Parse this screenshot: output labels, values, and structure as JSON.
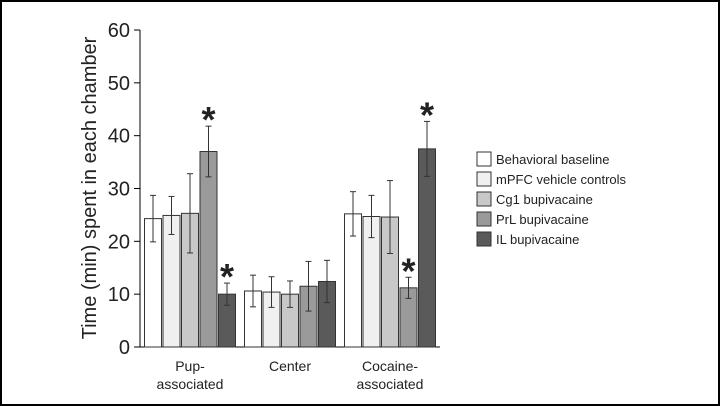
{
  "chart_data": {
    "type": "bar",
    "y_label": "Time (min) spent in each chamber",
    "categories": [
      "Pup-associated",
      "Center",
      "Cocaine-associated"
    ],
    "ylim": [
      0,
      60
    ],
    "yticks": [
      0,
      10,
      20,
      30,
      40,
      50,
      60
    ],
    "grid": false,
    "legend": "right",
    "series": [
      {
        "name": "Behavioral baseline",
        "color": "#ffffff",
        "values": [
          24.3,
          10.6,
          25.2
        ],
        "errors": [
          4.4,
          3.0,
          4.2
        ],
        "annotations": [
          null,
          null,
          null
        ]
      },
      {
        "name": "mPFC vehicle controls",
        "color": "#f0f0f0",
        "values": [
          24.9,
          10.4,
          24.7
        ],
        "errors": [
          3.6,
          2.9,
          4.0
        ],
        "annotations": [
          null,
          null,
          null
        ]
      },
      {
        "name": "Cg1 bupivacaine",
        "color": "#c8c8c8",
        "values": [
          25.3,
          10.0,
          24.6
        ],
        "errors": [
          7.5,
          2.5,
          6.9
        ],
        "annotations": [
          null,
          null,
          null
        ]
      },
      {
        "name": "PrL bupivacaine",
        "color": "#9a9a9a",
        "values": [
          37.0,
          11.5,
          11.2
        ],
        "errors": [
          4.8,
          4.7,
          2.0
        ],
        "annotations": [
          "*",
          null,
          "*"
        ]
      },
      {
        "name": "IL bupivacaine",
        "color": "#5a5a5a",
        "values": [
          10.0,
          12.4,
          37.5
        ],
        "errors": [
          2.1,
          4.0,
          5.2
        ],
        "annotations": [
          "*",
          null,
          "*"
        ]
      }
    ]
  }
}
